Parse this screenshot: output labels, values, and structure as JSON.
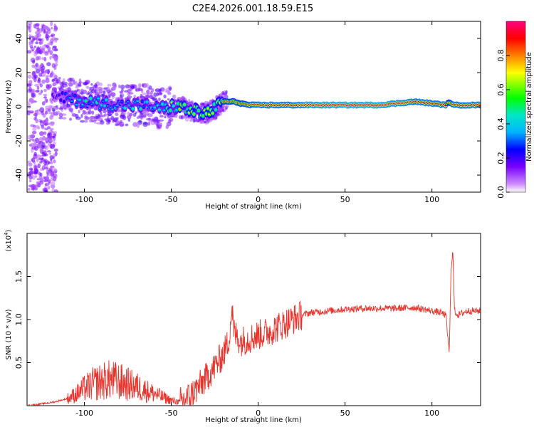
{
  "figure": {
    "title": "C2E4.2026.001.18.59.E15"
  },
  "chart_data": [
    {
      "type": "heatmap",
      "xlabel": "Height of straight line (km)",
      "ylabel": "Frequency (Hz)",
      "xlim": [
        -133,
        128
      ],
      "ylim": [
        -50,
        50
      ],
      "x_ticks": [
        -100,
        -50,
        0,
        50,
        100
      ],
      "y_ticks": [
        -40,
        -20,
        0,
        20,
        40
      ],
      "colorbar": {
        "label": "Normalized spectral amplitude",
        "range": [
          0,
          1
        ],
        "ticks": [
          0.0,
          0.2,
          0.4,
          0.6,
          0.8
        ],
        "colors": [
          "#ffffff",
          "#cc88ff",
          "#7700ff",
          "#0000ff",
          "#00b4ff",
          "#00e6c8",
          "#00ff00",
          "#ffff00",
          "#ff8000",
          "#ff0000",
          "#ff0080"
        ]
      },
      "ridge": {
        "x": [
          -118,
          -110,
          -100,
          -90,
          -80,
          -70,
          -60,
          -55,
          -50,
          -45,
          -40,
          -35,
          -30,
          -25,
          -20,
          -17,
          -14,
          -10,
          -5,
          0,
          10,
          20,
          30,
          50,
          70,
          80,
          90,
          100,
          108,
          110,
          112,
          120,
          128
        ],
        "freq": [
          5,
          5,
          3,
          2,
          1,
          1,
          0,
          -1,
          0,
          0,
          -2,
          -3,
          -4,
          -1,
          3,
          3,
          3,
          2,
          1,
          1,
          1,
          1,
          1,
          1,
          1,
          2,
          3,
          2,
          1,
          3,
          1,
          1,
          1
        ],
        "amplitude": [
          0.2,
          0.35,
          0.45,
          0.5,
          0.45,
          0.45,
          0.4,
          0.45,
          0.6,
          0.7,
          0.7,
          0.7,
          0.7,
          0.7,
          0.8,
          0.8,
          0.8,
          0.8,
          0.85,
          0.9,
          0.9,
          0.9,
          0.95,
          1.0,
          1.0,
          0.95,
          0.9,
          0.9,
          0.9,
          0.7,
          0.9,
          0.9,
          0.9
        ]
      }
    },
    {
      "type": "line",
      "xlabel": "Height of straight line (km)",
      "ylabel": "SNR (10 * v/v)",
      "y_multiplier": "(x10",
      "y_multiplier_exp": "4",
      "y_multiplier_close": ")",
      "xlim": [
        -133,
        128
      ],
      "ylim": [
        0,
        2.0
      ],
      "x_ticks": [
        -100,
        -50,
        0,
        50,
        100
      ],
      "y_ticks": [
        0.5,
        1.0,
        1.5
      ],
      "series": [
        {
          "color": "#e8342c",
          "x": [
            -133,
            -125,
            -118,
            -110,
            -105,
            -100,
            -95,
            -90,
            -85,
            -80,
            -75,
            -70,
            -65,
            -60,
            -55,
            -50,
            -45,
            -40,
            -35,
            -30,
            -25,
            -20,
            -17,
            -15,
            -14,
            -12,
            -10,
            -5,
            0,
            5,
            10,
            15,
            20,
            25,
            30,
            40,
            50,
            60,
            70,
            80,
            90,
            100,
            105,
            108,
            110,
            111,
            112,
            113,
            115,
            120,
            128
          ],
          "y": [
            0.0,
            0.02,
            0.04,
            0.08,
            0.13,
            0.2,
            0.25,
            0.28,
            0.3,
            0.28,
            0.25,
            0.22,
            0.18,
            0.14,
            0.1,
            0.06,
            0.04,
            0.1,
            0.2,
            0.32,
            0.45,
            0.6,
            0.75,
            1.15,
            0.85,
            0.8,
            0.75,
            0.78,
            0.82,
            0.85,
            0.9,
            0.95,
            1.0,
            1.05,
            1.08,
            1.1,
            1.12,
            1.13,
            1.13,
            1.13,
            1.14,
            1.1,
            1.08,
            1.05,
            0.6,
            1.6,
            1.8,
            1.1,
            1.05,
            1.1,
            1.1
          ]
        }
      ]
    }
  ]
}
